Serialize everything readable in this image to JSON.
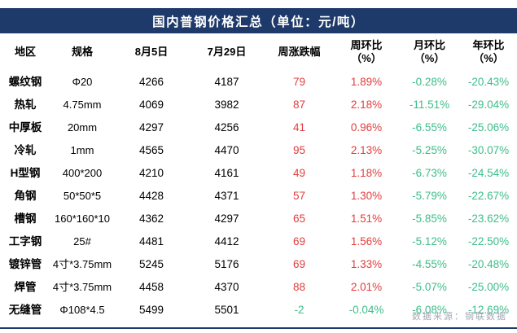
{
  "colors": {
    "navy": "#1e3a6b",
    "up_red": "#e23d3d",
    "down_green": "#3dbd8a",
    "source_gray": "#a3a9b5"
  },
  "chart_data": {
    "type": "table",
    "title": "国内普钢价格汇总（单位：元/吨）",
    "source": "数据来源：钢联数据",
    "columns": [
      {
        "label": "地区",
        "sub": ""
      },
      {
        "label": "规格",
        "sub": ""
      },
      {
        "label": "8月5日",
        "sub": ""
      },
      {
        "label": "7月29日",
        "sub": ""
      },
      {
        "label": "周涨跌幅",
        "sub": ""
      },
      {
        "label": "周环比",
        "sub": "（%）"
      },
      {
        "label": "月环比",
        "sub": "（%）"
      },
      {
        "label": "年环比",
        "sub": "（%）"
      }
    ],
    "rows": [
      {
        "region": "螺纹钢",
        "spec": "Φ20",
        "price_aug5": "4266",
        "price_jul29": "4187",
        "week_change": "79",
        "wow": "1.89%",
        "mom": "-0.28%",
        "yoy": "-20.43%"
      },
      {
        "region": "热轧",
        "spec": "4.75mm",
        "price_aug5": "4069",
        "price_jul29": "3982",
        "week_change": "87",
        "wow": "2.18%",
        "mom": "-11.51%",
        "yoy": "-29.04%"
      },
      {
        "region": "中厚板",
        "spec": "20mm",
        "price_aug5": "4297",
        "price_jul29": "4256",
        "week_change": "41",
        "wow": "0.96%",
        "mom": "-6.55%",
        "yoy": "-25.06%"
      },
      {
        "region": "冷轧",
        "spec": "1mm",
        "price_aug5": "4565",
        "price_jul29": "4470",
        "week_change": "95",
        "wow": "2.13%",
        "mom": "-5.25%",
        "yoy": "-30.07%"
      },
      {
        "region": "H型钢",
        "spec": "400*200",
        "price_aug5": "4210",
        "price_jul29": "4161",
        "week_change": "49",
        "wow": "1.18%",
        "mom": "-6.73%",
        "yoy": "-24.54%"
      },
      {
        "region": "角钢",
        "spec": "50*50*5",
        "price_aug5": "4428",
        "price_jul29": "4371",
        "week_change": "57",
        "wow": "1.30%",
        "mom": "-5.79%",
        "yoy": "-22.67%"
      },
      {
        "region": "槽钢",
        "spec": "160*160*10",
        "price_aug5": "4362",
        "price_jul29": "4297",
        "week_change": "65",
        "wow": "1.51%",
        "mom": "-5.85%",
        "yoy": "-23.62%"
      },
      {
        "region": "工字钢",
        "spec": "25#",
        "price_aug5": "4481",
        "price_jul29": "4412",
        "week_change": "69",
        "wow": "1.56%",
        "mom": "-5.12%",
        "yoy": "-22.50%"
      },
      {
        "region": "镀锌管",
        "spec": "4寸*3.75mm",
        "price_aug5": "5245",
        "price_jul29": "5176",
        "week_change": "69",
        "wow": "1.33%",
        "mom": "-4.55%",
        "yoy": "-20.48%"
      },
      {
        "region": "焊管",
        "spec": "4寸*3.75mm",
        "price_aug5": "4458",
        "price_jul29": "4370",
        "week_change": "88",
        "wow": "2.01%",
        "mom": "-5.07%",
        "yoy": "-25.00%"
      },
      {
        "region": "无缝管",
        "spec": "Φ108*4.5",
        "price_aug5": "5499",
        "price_jul29": "5501",
        "week_change": "-2",
        "wow": "-0.04%",
        "mom": "-6.08%",
        "yoy": "-12.69%"
      }
    ]
  }
}
